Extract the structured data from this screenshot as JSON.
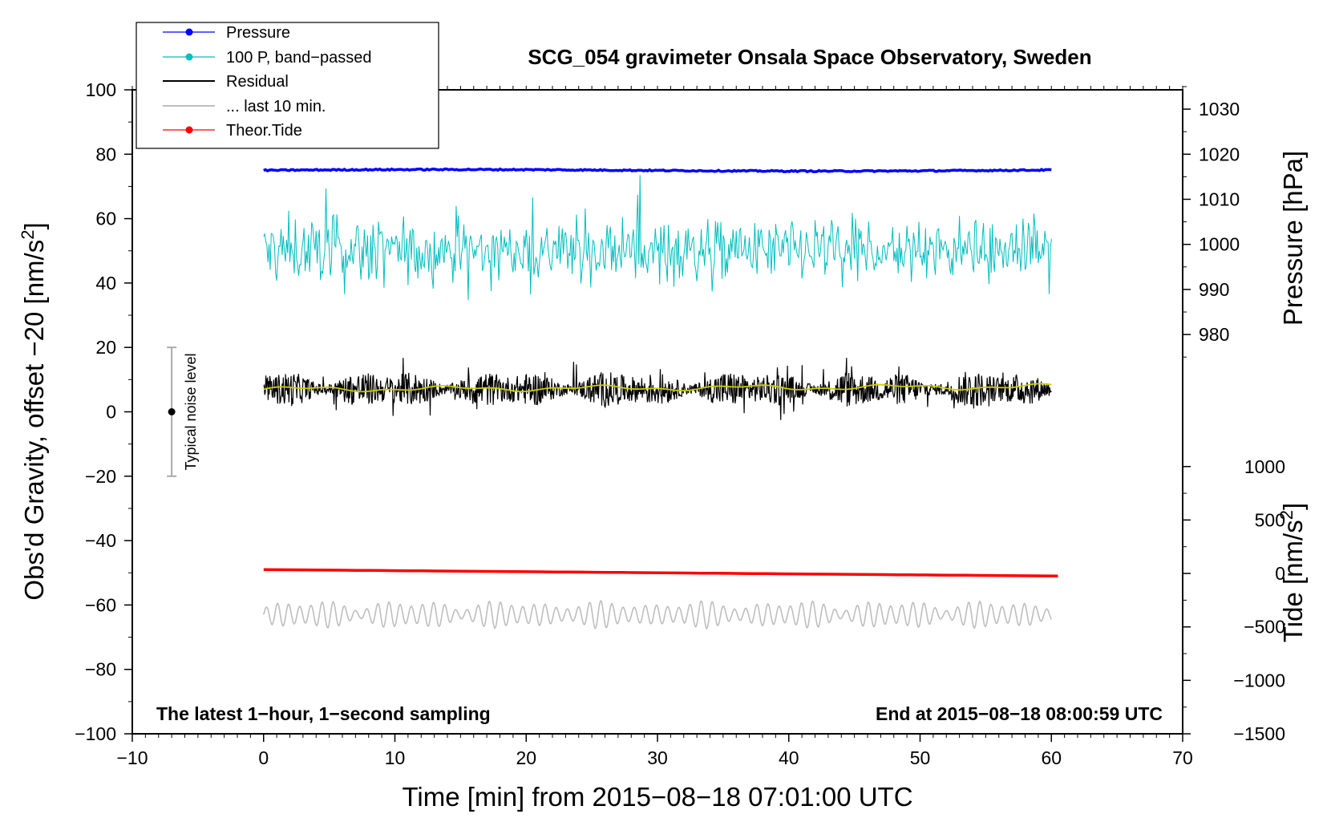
{
  "chart_data": {
    "type": "line",
    "title": "SCG_054 gravimeter Onsala Space Observatory, Sweden",
    "xlabel": "Time [min] from 2015−08−18 07:01:00 UTC",
    "ylabel_left": "Obs'd Gravity, offset −20 [nm/s",
    "ylabel_left_sup": "2",
    "ylabel_left_end": "]",
    "ylabel_right_top": "Pressure [hPa]",
    "ylabel_right_bottom": "Tide [nm/s",
    "ylabel_right_bottom_sup": "2",
    "ylabel_right_bottom_end": "]",
    "xlim": [
      -10,
      70
    ],
    "ylim": [
      -100,
      100
    ],
    "x_ticks": [
      -10,
      0,
      10,
      20,
      30,
      40,
      50,
      60,
      70
    ],
    "x_tick_labels": [
      "−10",
      "0",
      "10",
      "20",
      "30",
      "40",
      "50",
      "60",
      "70"
    ],
    "y_ticks": [
      -100,
      -80,
      -60,
      -40,
      -20,
      0,
      20,
      40,
      60,
      80,
      100
    ],
    "y_tick_labels": [
      "−100",
      "−80",
      "−60",
      "−40",
      "−20",
      "0",
      "20",
      "40",
      "60",
      "80",
      "100"
    ],
    "pressure_axis": {
      "ticks": [
        980,
        990,
        1000,
        1010,
        1020,
        1030
      ],
      "tick_labels": [
        "980",
        "990",
        "1000",
        "1010",
        "1020",
        "1030"
      ],
      "range": [
        970,
        1035
      ],
      "gravity_at_range": [
        10,
        101
      ]
    },
    "tide_axis": {
      "ticks": [
        -1500,
        -1000,
        -500,
        0,
        500,
        1000
      ],
      "tick_labels": [
        "−1500",
        "−1000",
        "−500",
        "0",
        "500",
        "1000"
      ],
      "range": [
        -1500,
        1000
      ],
      "gravity_at_range": [
        -100,
        -17
      ]
    },
    "series": [
      {
        "name": "Pressure",
        "color": "#0000ff",
        "marker": true,
        "level": 75.0,
        "amplitude": 0.4,
        "x_range": [
          0,
          60
        ]
      },
      {
        "name": "100 P, band−passed",
        "color": "#00bfbf",
        "marker": true,
        "level": 50,
        "amplitude": 6,
        "x_range": [
          0,
          60
        ]
      },
      {
        "name": "Residual",
        "color": "#000000",
        "marker": false,
        "level": 7,
        "amplitude": 2.5,
        "x_range": [
          0,
          60
        ]
      },
      {
        "name": "... last 10 min.",
        "color": "#bebebe",
        "marker": false,
        "level": -63,
        "amplitude": 3.5,
        "x_range": [
          0,
          60
        ]
      },
      {
        "name": "Theor.Tide",
        "color": "#ff0000",
        "marker": true,
        "start": -49,
        "end": -51,
        "x_range": [
          0,
          60.5
        ]
      }
    ],
    "residual_smooth_color": "#cccc00",
    "noise_bar": {
      "label": "Typical noise level",
      "x": -7,
      "center": 0,
      "half_range": 20
    },
    "annotation_left": "The latest 1−hour, 1−second sampling",
    "annotation_right": "End at 2015−08−18 08:00:59 UTC"
  }
}
